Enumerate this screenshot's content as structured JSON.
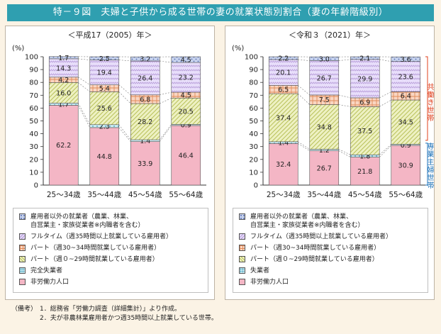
{
  "title": "特－９図　夫婦と子供から成る世帯の妻の就業状態別割合（妻の年齢階級別）",
  "colors": {
    "title_bg": "#2f9fb0",
    "outside_employee": "#c7d3ee",
    "fulltime": "#e8defa",
    "parttime_30_34": "#f9d6c2",
    "parttime_0_29": "#eef1c3",
    "unemployed": "#cfeef4",
    "not_in_labor": "#f4b6c5",
    "dual_income_label": "#e0401c",
    "single_earner_label": "#1d72b8"
  },
  "legend_left": [
    "雇用者以外の就業者（農業、林業、",
    "自営業主・家族従業者※内職者を含む）",
    "フルタイム（週35時間以上就業している雇用者）",
    "パート（週30~34時間就業している雇用者）",
    "パート（週０~29時間就業している雇用者）",
    "完全失業者",
    "非労働力人口"
  ],
  "legend_right": [
    "雇用者以外の就業者（農業、林業、",
    "自営業主・家族従業者※内職者を含む）",
    "フルタイム（週35時間以上就業している雇用者）",
    "パート（週30~34時間就業している雇用者）",
    "パート（週０~29時間就業している雇用者）",
    "失業者",
    "非労働力人口"
  ],
  "side_labels": {
    "dual": "共働き世帯",
    "single": "専業主婦世帯"
  },
  "notes": {
    "prefix": "（備考）",
    "line1": "1．総務省「労働力調査（詳細集計）」より作成。",
    "line2": "2．夫が非農林業雇用者かつ週35時間以上就業している世帯。"
  },
  "chart_data": [
    {
      "type": "bar",
      "stacked": true,
      "title": "＜平成17（2005）年＞",
      "ylabel": "(%)",
      "ylim": [
        0,
        100
      ],
      "yticks": [
        0,
        10,
        20,
        30,
        40,
        50,
        60,
        70,
        80,
        90,
        100
      ],
      "categories": [
        "25～34歳",
        "35～44歳",
        "45～54歳",
        "55～64歳"
      ],
      "series": [
        {
          "name": "非労働力人口",
          "values": [
            62.2,
            44.8,
            33.9,
            46.4
          ]
        },
        {
          "name": "完全失業者",
          "values": [
            1.7,
            2.3,
            1.4,
            0.9
          ]
        },
        {
          "name": "パート（週０~29時間就業している雇用者）",
          "values": [
            16.0,
            25.6,
            28.2,
            20.5
          ]
        },
        {
          "name": "パート（週30~34時間就業している雇用者）",
          "values": [
            4.2,
            5.4,
            6.8,
            4.5
          ]
        },
        {
          "name": "フルタイム（週35時間以上就業している雇用者）",
          "values": [
            14.3,
            19.4,
            26.4,
            23.2
          ]
        },
        {
          "name": "雇用者以外の就業者（農業、林業、自営業主・家族従業者※内職者を含む）",
          "values": [
            1.7,
            2.5,
            3.2,
            4.5
          ]
        }
      ]
    },
    {
      "type": "bar",
      "stacked": true,
      "title": "＜令和３（2021）年＞",
      "ylabel": "(%)",
      "ylim": [
        0,
        100
      ],
      "yticks": [
        0,
        10,
        20,
        30,
        40,
        50,
        60,
        70,
        80,
        90,
        100
      ],
      "categories": [
        "25～34歳",
        "35～44歳",
        "45～54歳",
        "55～64歳"
      ],
      "series": [
        {
          "name": "非労働力人口",
          "values": [
            32.4,
            26.7,
            21.8,
            30.9
          ]
        },
        {
          "name": "失業者",
          "values": [
            1.4,
            1.2,
            1.8,
            0.9
          ]
        },
        {
          "name": "パート（週０~29時間就業している雇用者）",
          "values": [
            37.4,
            34.8,
            37.5,
            34.5
          ]
        },
        {
          "name": "パート（週30~34時間就業している雇用者）",
          "values": [
            6.5,
            7.5,
            6.9,
            6.4
          ]
        },
        {
          "name": "フルタイム（週35時間以上就業している雇用者）",
          "values": [
            20.1,
            26.7,
            29.9,
            23.6
          ]
        },
        {
          "name": "雇用者以外の就業者（農業、林業、自営業主・家族従業者※内職者を含む）",
          "values": [
            2.2,
            3.0,
            2.1,
            3.6
          ]
        }
      ]
    }
  ]
}
